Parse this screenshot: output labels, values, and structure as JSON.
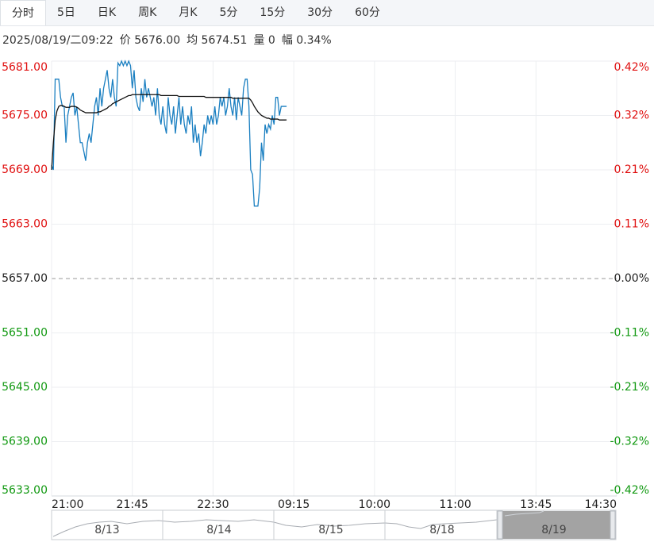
{
  "tabs": [
    "分时",
    "5日",
    "日K",
    "周K",
    "月K",
    "5分",
    "15分",
    "30分",
    "60分"
  ],
  "info": [
    "2025/08/19/二09:22",
    "价 5676.00",
    "均 5674.51",
    "量 0",
    "幅 0.34%"
  ],
  "chart_data": {
    "type": "line",
    "baseline": 5657,
    "xlim": [
      0,
      315
    ],
    "xticks": [
      {
        "value": 0,
        "label": "21:00"
      },
      {
        "value": 45,
        "label": "21:45"
      },
      {
        "value": 90,
        "label": "22:30"
      },
      {
        "value": 135,
        "label": "09:15"
      },
      {
        "value": 180,
        "label": "10:00"
      },
      {
        "value": 225,
        "label": "11:00"
      },
      {
        "value": 270,
        "label": "13:45"
      },
      {
        "value": 315,
        "label": "14:30"
      }
    ],
    "ylim": [
      5633,
      5681
    ],
    "yticks": [
      {
        "value": 5681,
        "label": "5681.00"
      },
      {
        "value": 5675,
        "label": "5675.00"
      },
      {
        "value": 5669,
        "label": "5669.00"
      },
      {
        "value": 5663,
        "label": "5663.00"
      },
      {
        "value": 5657,
        "label": "5657.00"
      },
      {
        "value": 5651,
        "label": "5651.00"
      },
      {
        "value": 5645,
        "label": "5645.00"
      },
      {
        "value": 5639,
        "label": "5639.00"
      },
      {
        "value": 5633,
        "label": "5633.00"
      }
    ],
    "y2lim": [
      -0.424,
      0.424
    ],
    "y2ticks": [
      {
        "value": 0.424,
        "label": "0.42%"
      },
      {
        "value": 0.318,
        "label": "0.32%"
      },
      {
        "value": 0.212,
        "label": "0.21%"
      },
      {
        "value": 0.106,
        "label": "0.11%"
      },
      {
        "value": 0,
        "label": "0.00%"
      },
      {
        "value": -0.106,
        "label": "-0.11%"
      },
      {
        "value": -0.212,
        "label": "-0.21%"
      },
      {
        "value": -0.318,
        "label": "-0.32%"
      },
      {
        "value": -0.424,
        "label": "-0.42%"
      }
    ],
    "grid": true,
    "series": [
      {
        "color": "#1a7fc1",
        "values": [
          5669.5,
          5669,
          5679,
          5679,
          5679,
          5677,
          5676,
          5676,
          5672,
          5675,
          5676,
          5677,
          5677.5,
          5675,
          5676,
          5674,
          5672,
          5672,
          5671,
          5670,
          5672,
          5673,
          5672,
          5674,
          5676,
          5677,
          5675,
          5678,
          5676,
          5678,
          5679,
          5680,
          5678,
          5677,
          5679,
          5677,
          5676,
          5680.8,
          5680.5,
          5681,
          5680.5,
          5681,
          5680.5,
          5681,
          5680.5,
          5678,
          5680,
          5677,
          5676,
          5675.5,
          5678,
          5676.5,
          5679,
          5677,
          5678,
          5677,
          5676,
          5677,
          5675,
          5678,
          5675,
          5674,
          5676,
          5674,
          5673,
          5677,
          5675,
          5674,
          5676,
          5673,
          5675,
          5677,
          5674,
          5676,
          5674,
          5673,
          5675,
          5674,
          5676,
          5672,
          5674,
          5672,
          5673,
          5670.5,
          5672,
          5674,
          5673,
          5675,
          5674,
          5675,
          5674,
          5676,
          5674,
          5675,
          5677,
          5676,
          5677,
          5675,
          5676,
          5678,
          5676,
          5675,
          5677,
          5674.5,
          5677,
          5676,
          5675,
          5678,
          5679,
          5679,
          5676,
          5669,
          5668.5,
          5665,
          5665,
          5665,
          5667,
          5672,
          5670,
          5674,
          5673,
          5674,
          5673.5,
          5675,
          5674,
          5677,
          5677,
          5675,
          5676,
          5676,
          5676,
          5676
        ]
      },
      {
        "color": "#111111",
        "values": [
          5669,
          5672,
          5674.5,
          5675.5,
          5676,
          5676.1,
          5676.1,
          5676.0,
          5675.9,
          5675.9,
          5675.9,
          5676.0,
          5676.0,
          5676.0,
          5675.9,
          5675.8,
          5675.6,
          5675.5,
          5675.4,
          5675.3,
          5675.3,
          5675.3,
          5675.3,
          5675.3,
          5675.3,
          5675.3,
          5675.4,
          5675.4,
          5675.5,
          5675.6,
          5675.7,
          5675.8,
          5676.0,
          5676.1,
          5676.3,
          5676.4,
          5676.5,
          5676.6,
          5676.7,
          5676.8,
          5676.9,
          5677.0,
          5677.1,
          5677.2,
          5677.2,
          5677.3,
          5677.3,
          5677.3,
          5677.3,
          5677.3,
          5677.3,
          5677.3,
          5677.3,
          5677.3,
          5677.3,
          5677.3,
          5677.3,
          5677.3,
          5677.3,
          5677.3,
          5677.3,
          5677.2,
          5677.2,
          5677.2,
          5677.2,
          5677.2,
          5677.2,
          5677.2,
          5677.2,
          5677.2,
          5677.2,
          5677.1,
          5677.1,
          5677.1,
          5677.1,
          5677.1,
          5677.1,
          5677.1,
          5677.1,
          5677.1,
          5677.1,
          5677.1,
          5677.1,
          5677.1,
          5677.1,
          5677.1,
          5677.0,
          5677.0,
          5677.0,
          5677.0,
          5677.0,
          5677.0,
          5677.0,
          5677.0,
          5677.0,
          5677.0,
          5677.0,
          5677.0,
          5677.0,
          5677.0,
          5677.0,
          5676.9,
          5676.9,
          5676.9,
          5676.9,
          5676.9,
          5676.9,
          5676.9,
          5676.9,
          5676.9,
          5676.9,
          5676.7,
          5676.4,
          5676.0,
          5675.7,
          5675.4,
          5675.2,
          5675.0,
          5674.9,
          5674.8,
          5674.7,
          5674.7,
          5674.6,
          5674.6,
          5674.6,
          5674.6,
          5674.6,
          5674.5,
          5674.5,
          5674.5,
          5674.5,
          5674.51
        ]
      }
    ],
    "navigator": [
      "8/13",
      "8/14",
      "8/15",
      "8/18",
      "8/19"
    ]
  }
}
